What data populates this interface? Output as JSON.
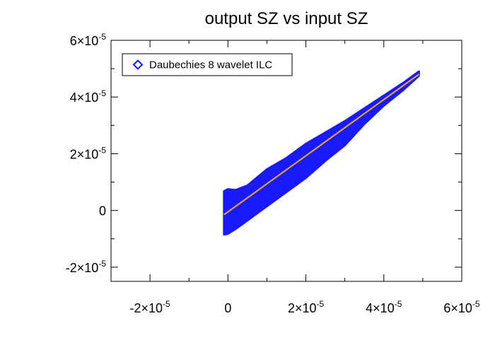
{
  "chart_data": {
    "type": "scatter",
    "title": "output SZ vs input SZ",
    "xlabel": "",
    "ylabel": "",
    "xlim": [
      -3e-05,
      6e-05
    ],
    "ylim": [
      -2.5e-05,
      6e-05
    ],
    "grid": false,
    "legend": {
      "placement": "top-left",
      "entries": [
        {
          "label": "Daubechies 8 wavelet ILC",
          "marker": "diamond",
          "color": "#1a1aff"
        }
      ]
    },
    "x_ticks": [
      {
        "value": -2e-05,
        "mantissa": "-2",
        "base": "×10",
        "exp": "-5"
      },
      {
        "value": 0,
        "plain": "0"
      },
      {
        "value": 2e-05,
        "mantissa": "2",
        "base": "×10",
        "exp": "-5"
      },
      {
        "value": 4e-05,
        "mantissa": "4",
        "base": "×10",
        "exp": "-5"
      },
      {
        "value": 6e-05,
        "mantissa": "6",
        "base": "×10",
        "exp": "-5"
      }
    ],
    "y_ticks": [
      {
        "value": -2e-05,
        "mantissa": "-2",
        "base": "×10",
        "exp": "-5"
      },
      {
        "value": 0,
        "plain": "0"
      },
      {
        "value": 2e-05,
        "mantissa": "2",
        "base": "×10",
        "exp": "-5"
      },
      {
        "value": 4e-05,
        "mantissa": "4",
        "base": "×10",
        "exp": "-5"
      },
      {
        "value": 6e-05,
        "mantissa": "6",
        "base": "×10",
        "exp": "-5"
      }
    ],
    "x_minor_step": 1e-05,
    "y_minor_step": 1e-05,
    "series": [
      {
        "name": "Daubechies 8 wavelet ILC",
        "kind": "scatter-band",
        "color": "#1a1aff",
        "band": {
          "x": [
            -1e-06,
            0,
            2e-06,
            5e-06,
            1e-05,
            1.5e-05,
            2e-05,
            2.5e-05,
            3e-05,
            3.5e-05,
            4e-05,
            4.5e-05,
            4.9e-05
          ],
          "upper": [
            6.8e-06,
            7.5e-06,
            7.2e-06,
            8.8e-06,
            1.45e-05,
            1.85e-05,
            2.35e-05,
            2.75e-05,
            3.15e-05,
            3.6e-05,
            4.05e-05,
            4.5e-05,
            4.9e-05
          ],
          "lower": [
            -8.5e-06,
            -8.2e-06,
            -6.5e-06,
            -3.5e-06,
            1.5e-06,
            6.5e-06,
            1.15e-05,
            1.75e-05,
            2.3e-05,
            3.05e-05,
            3.7e-05,
            4.25e-05,
            4.75e-05
          ]
        }
      },
      {
        "name": "",
        "kind": "line",
        "color": "#f0a830",
        "x": [
          -1e-06,
          4.9e-05
        ],
        "y": [
          -1.5e-06,
          4.8e-05
        ]
      }
    ]
  }
}
